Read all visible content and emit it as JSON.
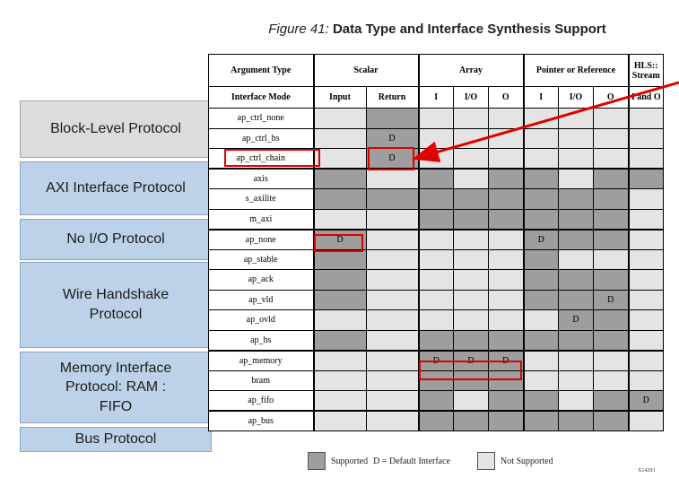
{
  "caption": {
    "figure_label": "Figure 41:",
    "title": "Data Type and Interface Synthesis Support"
  },
  "protocol_groups": [
    {
      "label": "Block-Level Protocol"
    },
    {
      "label": "AXI Interface Protocol"
    },
    {
      "label": "No I/O Protocol"
    },
    {
      "label": "Wire Handshake Protocol"
    },
    {
      "label": "Memory Interface Protocol: RAM : FIFO"
    },
    {
      "label": "Bus Protocol"
    }
  ],
  "table": {
    "header_row1": {
      "argument_type": "Argument Type",
      "scalar": "Scalar",
      "array": "Array",
      "pointer": "Pointer or Reference",
      "stream": "HLS:: Stream"
    },
    "header_row2": {
      "interface_mode": "Interface Mode",
      "cols": [
        "Input",
        "Return",
        "I",
        "I/O",
        "O",
        "I",
        "I/O",
        "O",
        "I and O"
      ]
    },
    "rows": [
      {
        "mode": "ap_ctrl_none",
        "cells": [
          "U",
          "S",
          "U",
          "U",
          "U",
          "U",
          "U",
          "U",
          "U"
        ],
        "text": [
          "",
          "",
          "",
          "",
          "",
          "",
          "",
          "",
          ""
        ]
      },
      {
        "mode": "ap_ctrl_hs",
        "cells": [
          "U",
          "S",
          "U",
          "U",
          "U",
          "U",
          "U",
          "U",
          "U"
        ],
        "text": [
          "",
          "D",
          "",
          "",
          "",
          "",
          "",
          "",
          ""
        ]
      },
      {
        "mode": "ap_ctrl_chain",
        "cells": [
          "U",
          "S",
          "U",
          "U",
          "U",
          "U",
          "U",
          "U",
          "U"
        ],
        "text": [
          "",
          "D",
          "",
          "",
          "",
          "",
          "",
          "",
          ""
        ]
      },
      {
        "mode": "axis",
        "cells": [
          "S",
          "U",
          "S",
          "U",
          "S",
          "S",
          "U",
          "S",
          "S"
        ],
        "text": [
          "",
          "",
          "",
          "",
          "",
          "",
          "",
          "",
          ""
        ]
      },
      {
        "mode": "s_axilite",
        "cells": [
          "S",
          "S",
          "S",
          "S",
          "S",
          "S",
          "S",
          "S",
          "U"
        ],
        "text": [
          "",
          "",
          "",
          "",
          "",
          "",
          "",
          "",
          ""
        ]
      },
      {
        "mode": "m_axi",
        "cells": [
          "U",
          "U",
          "S",
          "S",
          "S",
          "S",
          "S",
          "S",
          "U"
        ],
        "text": [
          "",
          "",
          "",
          "",
          "",
          "",
          "",
          "",
          ""
        ]
      },
      {
        "mode": "ap_none",
        "cells": [
          "S",
          "U",
          "U",
          "U",
          "U",
          "S",
          "S",
          "S",
          "U"
        ],
        "text": [
          "D",
          "",
          "",
          "",
          "",
          "D",
          "",
          "",
          ""
        ]
      },
      {
        "mode": "ap_stable",
        "cells": [
          "S",
          "U",
          "U",
          "U",
          "U",
          "S",
          "U",
          "U",
          "U"
        ],
        "text": [
          "",
          "",
          "",
          "",
          "",
          "",
          "",
          "",
          ""
        ]
      },
      {
        "mode": "ap_ack",
        "cells": [
          "S",
          "U",
          "U",
          "U",
          "U",
          "S",
          "S",
          "S",
          "U"
        ],
        "text": [
          "",
          "",
          "",
          "",
          "",
          "",
          "",
          "",
          ""
        ]
      },
      {
        "mode": "ap_vld",
        "cells": [
          "S",
          "U",
          "U",
          "U",
          "U",
          "S",
          "S",
          "S",
          "U"
        ],
        "text": [
          "",
          "",
          "",
          "",
          "",
          "",
          "",
          "D",
          ""
        ]
      },
      {
        "mode": "ap_ovld",
        "cells": [
          "U",
          "U",
          "U",
          "U",
          "U",
          "U",
          "S",
          "S",
          "U"
        ],
        "text": [
          "",
          "",
          "",
          "",
          "",
          "",
          "D",
          "",
          ""
        ]
      },
      {
        "mode": "ap_hs",
        "cells": [
          "S",
          "U",
          "S",
          "S",
          "S",
          "S",
          "S",
          "S",
          "U"
        ],
        "text": [
          "",
          "",
          "",
          "",
          "",
          "",
          "",
          "",
          ""
        ]
      },
      {
        "mode": "ap_memory",
        "cells": [
          "U",
          "U",
          "S",
          "S",
          "S",
          "U",
          "U",
          "U",
          "U"
        ],
        "text": [
          "",
          "",
          "D",
          "D",
          "D",
          "",
          "",
          "",
          ""
        ]
      },
      {
        "mode": "bram",
        "cells": [
          "U",
          "U",
          "S",
          "S",
          "S",
          "U",
          "U",
          "U",
          "U"
        ],
        "text": [
          "",
          "",
          "",
          "",
          "",
          "",
          "",
          "",
          ""
        ]
      },
      {
        "mode": "ap_fifo",
        "cells": [
          "U",
          "U",
          "S",
          "U",
          "S",
          "S",
          "U",
          "S",
          "S"
        ],
        "text": [
          "",
          "",
          "",
          "",
          "",
          "",
          "",
          "",
          "D"
        ]
      },
      {
        "mode": "ap_bus",
        "cells": [
          "U",
          "U",
          "S",
          "S",
          "S",
          "S",
          "S",
          "S",
          "U"
        ],
        "text": [
          "",
          "",
          "",
          "",
          "",
          "",
          "",
          "",
          ""
        ]
      }
    ]
  },
  "legend": {
    "supported_label": "Supported",
    "default_label": "D = Default Interface",
    "not_supported_label": "Not Supported"
  },
  "figure_id": "X14293",
  "colors": {
    "supported": "#9e9e9e",
    "not_supported": "#e4e4e4",
    "highlight": "#e00000",
    "tab_blue": "#bdd2e8",
    "tab_gray": "#dcdcdc"
  }
}
